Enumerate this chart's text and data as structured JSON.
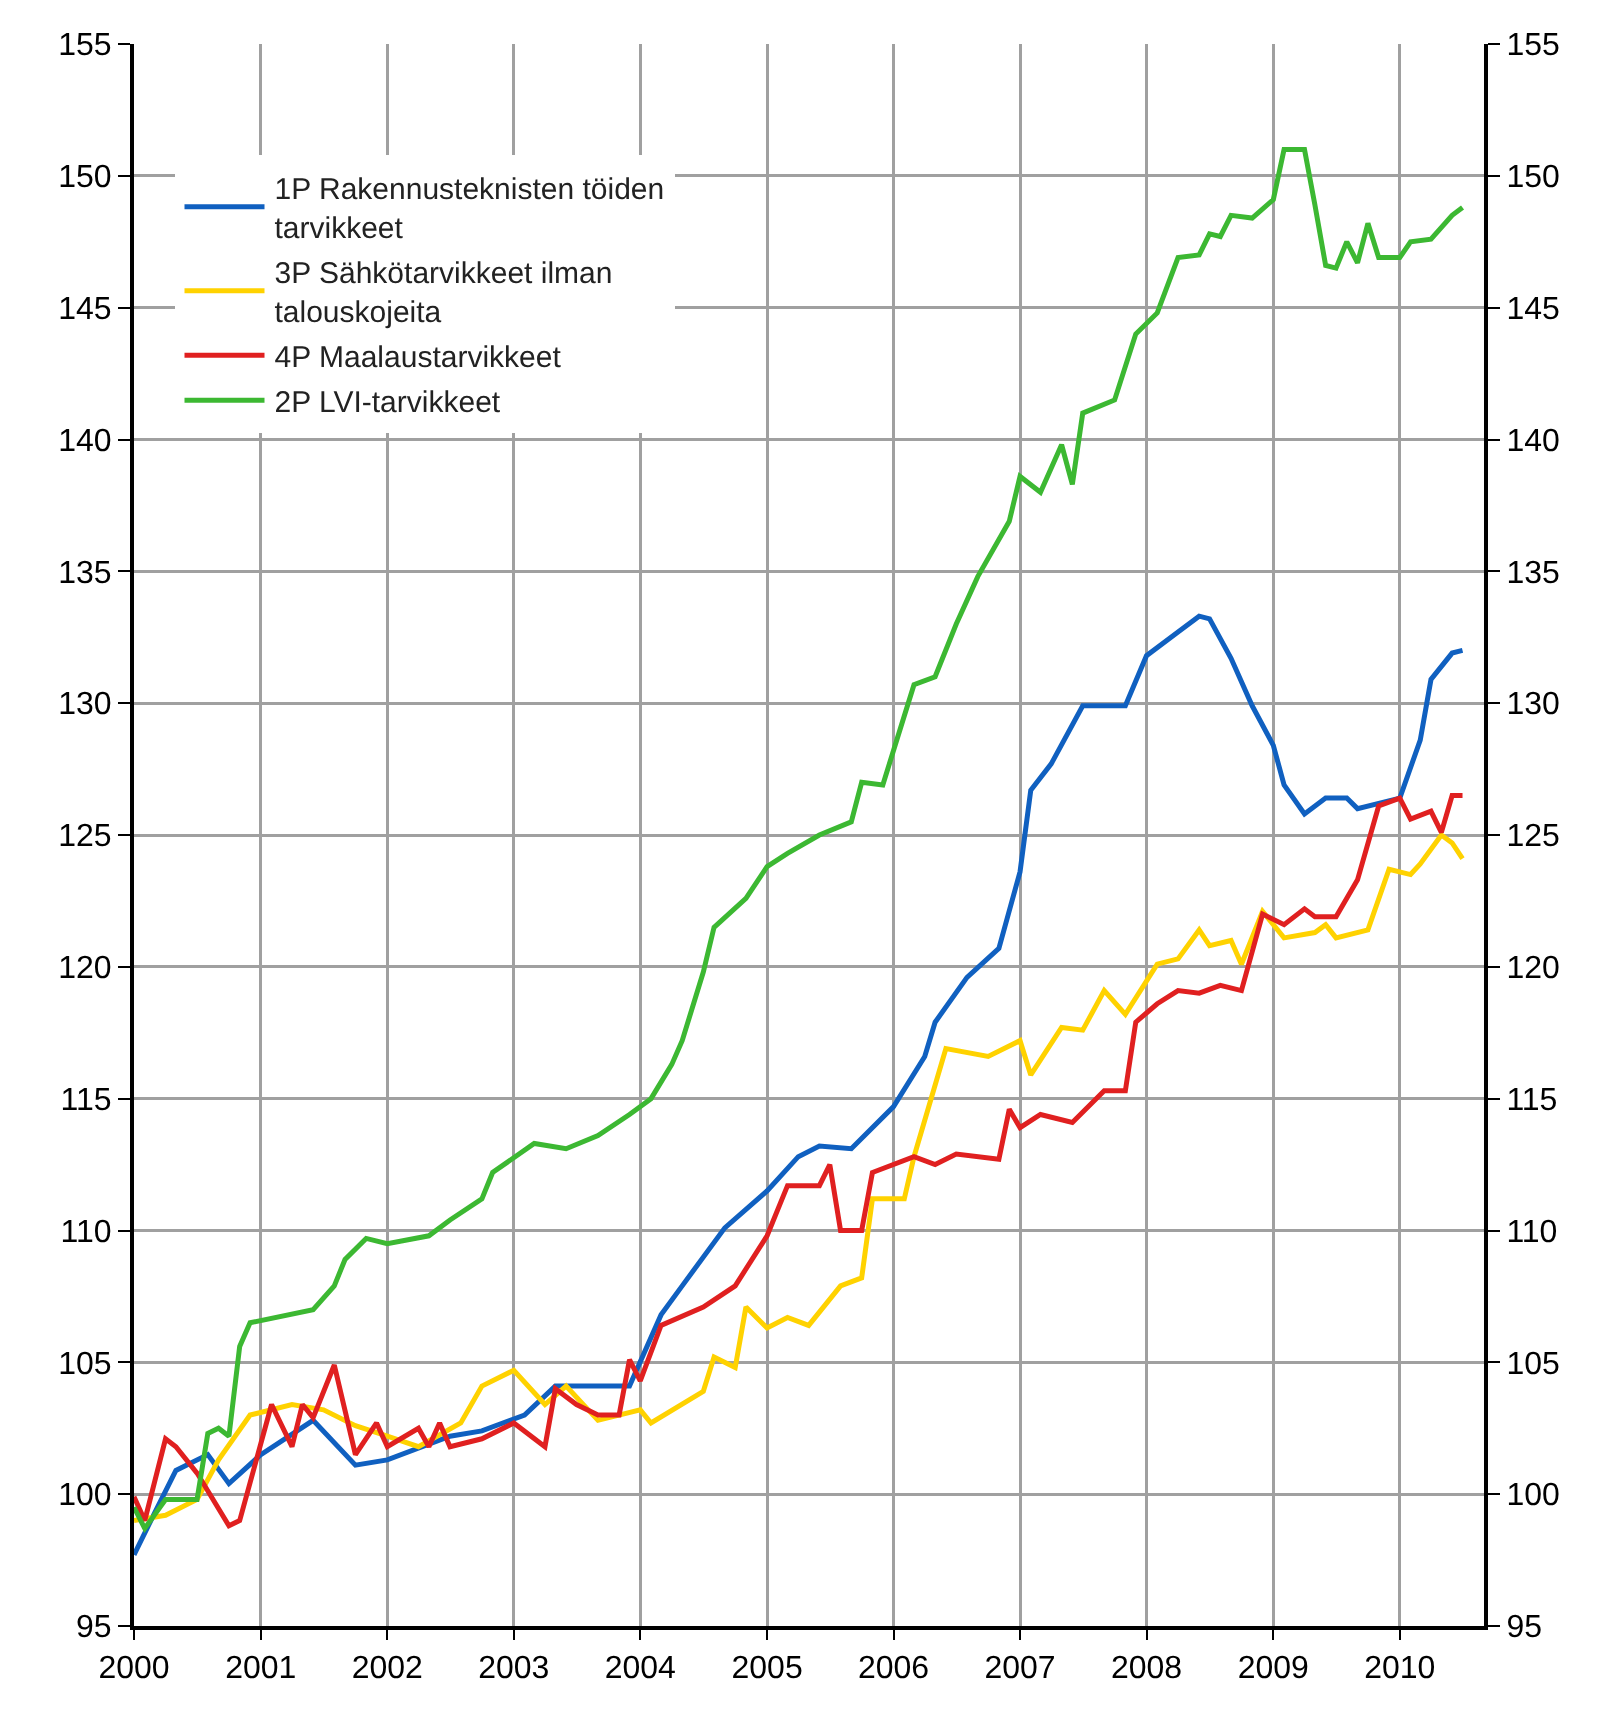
{
  "chart_data": {
    "type": "line",
    "grid": true,
    "legend": "top left",
    "marker": "none",
    "line_style": "solid",
    "xlim": [
      "2000-01",
      "2010-09"
    ],
    "xticks": [
      "2000",
      "2001",
      "2002",
      "2003",
      "2004",
      "2005",
      "2006",
      "2007",
      "2008",
      "2009",
      "2010"
    ],
    "ylim": [
      95,
      155
    ],
    "yticks": [
      95,
      100,
      105,
      110,
      115,
      120,
      125,
      130,
      135,
      140,
      145,
      150,
      155
    ],
    "y2lim": [
      95,
      155
    ],
    "y2ticks": [
      95,
      100,
      105,
      110,
      115,
      120,
      125,
      130,
      135,
      140,
      145,
      150,
      155
    ],
    "series": [
      {
        "name": "1P Rakennusteknisten töiden tarvikkeet",
        "color": "#1060c0",
        "x": [
          "2000-01",
          "2000-03",
          "2000-05",
          "2000-08",
          "2000-10",
          "2001-01",
          "2001-06",
          "2001-10",
          "2002-01",
          "2002-07",
          "2002-10",
          "2003-02",
          "2003-05",
          "2003-12",
          "2004-03",
          "2004-05",
          "2004-09",
          "2005-01",
          "2005-04",
          "2005-06",
          "2005-09",
          "2006-01",
          "2006-04",
          "2006-05",
          "2006-08",
          "2006-11",
          "2007-01",
          "2007-02",
          "2007-04",
          "2007-07",
          "2007-11",
          "2008-01",
          "2008-04",
          "2008-06",
          "2008-07",
          "2008-09",
          "2008-11",
          "2009-01",
          "2009-02",
          "2009-04",
          "2009-06",
          "2009-08",
          "2009-09",
          "2010-01",
          "2010-03",
          "2010-04",
          "2010-06",
          "2010-07"
        ],
        "values": [
          97.7,
          99.3,
          100.9,
          101.5,
          100.4,
          101.5,
          102.8,
          101.1,
          101.3,
          102.2,
          102.4,
          103,
          104.1,
          104.1,
          106.8,
          107.9,
          110.1,
          111.5,
          112.8,
          113.2,
          113.1,
          114.7,
          116.6,
          117.9,
          119.6,
          120.7,
          123.6,
          126.7,
          127.7,
          129.9,
          129.9,
          131.8,
          132.7,
          133.3,
          133.2,
          131.7,
          129.9,
          128.4,
          126.9,
          125.8,
          126.4,
          126.4,
          126,
          126.4,
          128.6,
          130.9,
          131.9,
          132
        ]
      },
      {
        "name": "3P Sähkötarvikkeet ilman talouskojeita",
        "color": "#ffd200",
        "x": [
          "2000-01",
          "2000-04",
          "2000-07",
          "2000-09",
          "2000-12",
          "2001-04",
          "2001-07",
          "2001-10",
          "2002-01",
          "2002-04",
          "2002-08",
          "2002-10",
          "2003-01",
          "2003-04",
          "2003-06",
          "2003-09",
          "2004-01",
          "2004-02",
          "2004-07",
          "2004-08",
          "2004-10",
          "2004-11",
          "2005-01",
          "2005-03",
          "2005-05",
          "2005-08",
          "2005-10",
          "2005-11",
          "2006-02",
          "2006-03",
          "2006-06",
          "2006-10",
          "2007-01",
          "2007-02",
          "2007-05",
          "2007-07",
          "2007-09",
          "2007-11",
          "2008-02",
          "2008-04",
          "2008-06",
          "2008-07",
          "2008-09",
          "2008-10",
          "2008-12",
          "2009-02",
          "2009-05",
          "2009-06",
          "2009-07",
          "2009-10",
          "2009-12",
          "2010-02",
          "2010-03",
          "2010-05",
          "2010-06",
          "2010-07"
        ],
        "values": [
          99,
          99.2,
          99.8,
          101.3,
          103,
          103.4,
          103.2,
          102.6,
          102.2,
          101.8,
          102.7,
          104.1,
          104.7,
          103.4,
          104.1,
          102.8,
          103.2,
          102.7,
          103.9,
          105.2,
          104.8,
          107.1,
          106.3,
          106.7,
          106.4,
          107.9,
          108.2,
          111.2,
          111.2,
          112.8,
          116.9,
          116.6,
          117.2,
          115.9,
          117.7,
          117.6,
          119.1,
          118.2,
          120.1,
          120.3,
          121.4,
          120.8,
          121,
          120.1,
          122.1,
          121.1,
          121.3,
          121.6,
          121.1,
          121.4,
          123.7,
          123.5,
          123.9,
          125,
          124.7,
          124.1
        ]
      },
      {
        "name": "4P Maalaustarvikkeet",
        "color": "#e02020",
        "x": [
          "2000-01",
          "2000-02",
          "2000-04",
          "2000-05",
          "2000-07",
          "2000-10",
          "2000-11",
          "2001-02",
          "2001-04",
          "2001-05",
          "2001-06",
          "2001-08",
          "2001-10",
          "2001-12",
          "2002-01",
          "2002-04",
          "2002-05",
          "2002-06",
          "2002-07",
          "2002-10",
          "2003-01",
          "2003-04",
          "2003-05",
          "2003-07",
          "2003-09",
          "2003-11",
          "2003-12",
          "2004-01",
          "2004-03",
          "2004-07",
          "2004-10",
          "2005-01",
          "2005-03",
          "2005-06",
          "2005-07",
          "2005-08",
          "2005-10",
          "2005-11",
          "2006-03",
          "2006-05",
          "2006-07",
          "2006-11",
          "2006-12",
          "2007-01",
          "2007-03",
          "2007-06",
          "2007-09",
          "2007-11",
          "2007-12",
          "2008-02",
          "2008-04",
          "2008-06",
          "2008-08",
          "2008-10",
          "2008-12",
          "2009-02",
          "2009-04",
          "2009-05",
          "2009-07",
          "2009-09",
          "2009-11",
          "2010-01",
          "2010-02",
          "2010-04",
          "2010-05",
          "2010-06",
          "2010-07"
        ],
        "values": [
          99.9,
          99,
          102.1,
          101.8,
          100.8,
          98.8,
          99,
          103.4,
          101.8,
          103.4,
          102.9,
          104.9,
          101.5,
          102.7,
          101.8,
          102.5,
          101.8,
          102.7,
          101.8,
          102.1,
          102.7,
          101.8,
          104,
          103.4,
          103,
          103,
          105.1,
          104.3,
          106.4,
          107.1,
          107.9,
          109.8,
          111.7,
          111.7,
          112.5,
          110,
          110,
          112.2,
          112.8,
          112.5,
          112.9,
          112.7,
          114.6,
          113.9,
          114.4,
          114.1,
          115.3,
          115.3,
          117.9,
          118.6,
          119.1,
          119,
          119.3,
          119.1,
          122,
          121.6,
          122.2,
          121.9,
          121.9,
          123.3,
          126.1,
          126.4,
          125.6,
          125.9,
          125.1,
          126.5,
          126.5
        ]
      },
      {
        "name": "2P LVI-tarvikkeet",
        "color": "#3cb832",
        "x": [
          "2000-01",
          "2000-02",
          "2000-04",
          "2000-07",
          "2000-08",
          "2000-09",
          "2000-10",
          "2000-11",
          "2000-12",
          "2001-06",
          "2001-08",
          "2001-09",
          "2001-11",
          "2002-01",
          "2002-05",
          "2002-07",
          "2002-10",
          "2002-11",
          "2003-03",
          "2003-06",
          "2003-09",
          "2003-12",
          "2004-02",
          "2004-04",
          "2004-05",
          "2004-07",
          "2004-08",
          "2004-11",
          "2005-01",
          "2005-03",
          "2005-06",
          "2005-09",
          "2005-10",
          "2005-12",
          "2006-03",
          "2006-05",
          "2006-07",
          "2006-09",
          "2006-12",
          "2007-01",
          "2007-03",
          "2007-05",
          "2007-06",
          "2007-07",
          "2007-10",
          "2007-12",
          "2008-02",
          "2008-04",
          "2008-06",
          "2008-07",
          "2008-08",
          "2008-09",
          "2008-11",
          "2009-01",
          "2009-02",
          "2009-04",
          "2009-05",
          "2009-06",
          "2009-07",
          "2009-08",
          "2009-09",
          "2009-10",
          "2009-11",
          "2010-01",
          "2010-02",
          "2010-04",
          "2010-06",
          "2010-07"
        ],
        "values": [
          99.5,
          98.7,
          99.8,
          99.8,
          102.3,
          102.5,
          102.2,
          105.6,
          106.5,
          107,
          107.9,
          108.9,
          109.7,
          109.5,
          109.8,
          110.4,
          111.2,
          112.2,
          113.3,
          113.1,
          113.6,
          114.4,
          115,
          116.3,
          117.2,
          119.8,
          121.5,
          122.6,
          123.8,
          124.3,
          125,
          125.5,
          127,
          126.9,
          130.7,
          131,
          133,
          134.8,
          136.9,
          138.6,
          138,
          139.8,
          138.3,
          141,
          141.5,
          144,
          144.8,
          146.9,
          147,
          147.8,
          147.7,
          148.5,
          148.4,
          149.1,
          151,
          151,
          148.9,
          146.6,
          146.5,
          147.5,
          146.7,
          148.2,
          146.9,
          146.9,
          147.5,
          147.6,
          148.5,
          148.8
        ]
      }
    ]
  }
}
